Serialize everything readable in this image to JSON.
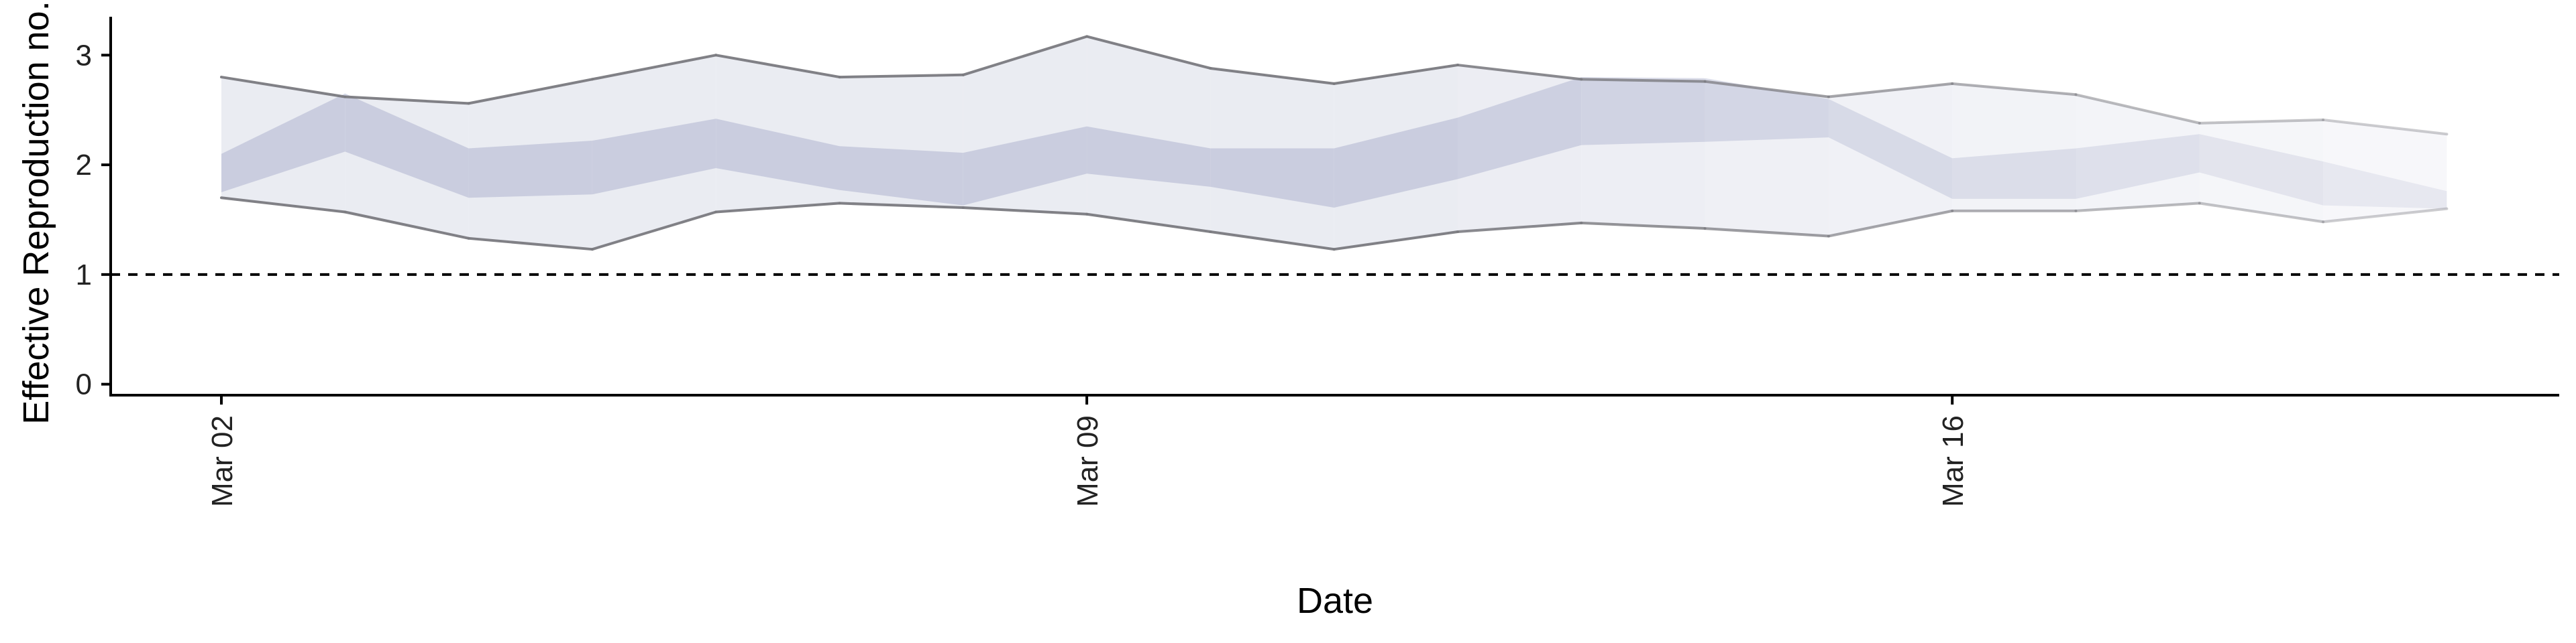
{
  "chart_data": {
    "type": "area",
    "title": "",
    "xlabel": "Date",
    "ylabel": "Effective Reproduction no.",
    "x": [
      "2020-03-02",
      "2020-03-03",
      "2020-03-04",
      "2020-03-05",
      "2020-03-06",
      "2020-03-07",
      "2020-03-08",
      "2020-03-09",
      "2020-03-10",
      "2020-03-11",
      "2020-03-12",
      "2020-03-13",
      "2020-03-14",
      "2020-03-15",
      "2020-03-16",
      "2020-03-17",
      "2020-03-18",
      "2020-03-19",
      "2020-03-20"
    ],
    "x_ticks": [
      {
        "date": "2020-03-02",
        "label": "Mar 02"
      },
      {
        "date": "2020-03-09",
        "label": "Mar 09"
      },
      {
        "date": "2020-03-16",
        "label": "Mar 16"
      }
    ],
    "y_ticks": [
      0,
      1,
      2,
      3
    ],
    "ylim": [
      -0.1,
      3.35
    ],
    "reference_line": {
      "y": 1,
      "style": "dashed"
    },
    "series": [
      {
        "role": "outer interval",
        "lower": [
          1.7,
          1.57,
          1.33,
          1.23,
          1.57,
          1.65,
          1.61,
          1.55,
          1.39,
          1.23,
          1.39,
          1.47,
          1.42,
          1.35,
          1.58,
          1.58,
          1.65,
          1.48,
          1.6
        ],
        "upper": [
          2.8,
          2.62,
          2.56,
          2.78,
          3.0,
          2.8,
          2.82,
          3.17,
          2.88,
          2.74,
          2.91,
          2.78,
          2.76,
          2.62,
          2.74,
          2.64,
          2.38,
          2.41,
          2.28
        ]
      },
      {
        "role": "inner interval",
        "lower": [
          1.75,
          2.12,
          1.7,
          1.73,
          1.97,
          1.77,
          1.63,
          1.92,
          1.8,
          1.61,
          1.87,
          2.18,
          2.21,
          2.25,
          1.69,
          1.69,
          1.93,
          1.63,
          1.6
        ],
        "upper": [
          2.1,
          2.65,
          2.15,
          2.22,
          2.42,
          2.17,
          2.11,
          2.35,
          2.15,
          2.15,
          2.43,
          2.8,
          2.79,
          2.6,
          2.06,
          2.15,
          2.28,
          2.03,
          1.76
        ]
      }
    ],
    "colors": {
      "outer_fill": "#e3e5ee",
      "inner_fill": "#b4b9d2",
      "outer_line": "#7a7a80",
      "axis": "#000000"
    },
    "note_on_fade": "bands and outer lines become progressively more transparent over the last days (from about Mar 12)"
  }
}
